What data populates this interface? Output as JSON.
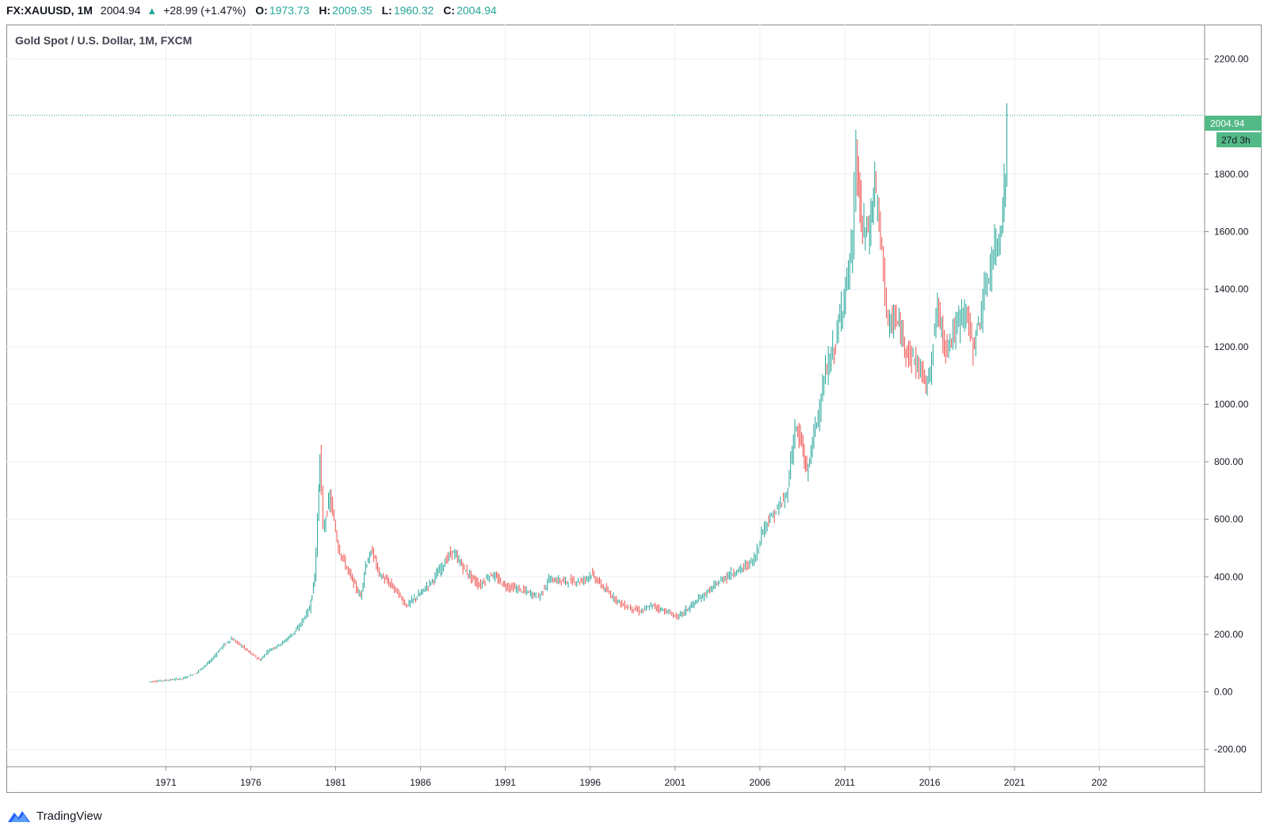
{
  "header": {
    "symbol": "FX:XAUUSD, 1M",
    "last": "2004.94",
    "arrow_icon": "triangle-up-icon",
    "change": "+28.99 (+1.47%)",
    "open_label": "O:",
    "open": "1973.73",
    "high_label": "H:",
    "high": "2009.35",
    "low_label": "L:",
    "low": "1960.32",
    "close_label": "C:",
    "close": "2004.94"
  },
  "legend": {
    "title": "Gold Spot / U.S. Dollar, 1M, FXCM"
  },
  "price_badge": {
    "value": "2004.94",
    "countdown": "27d 3h",
    "color": "#53b987"
  },
  "colors": {
    "up": "#26a69a",
    "down": "#ef5350",
    "grid": "#e9eff3",
    "axis_text": "#131722"
  },
  "footer": {
    "brand": "TradingView",
    "logo_icon": "tradingview-cloud-icon"
  },
  "chart_data": {
    "type": "line",
    "x_ticks": [
      "1971",
      "1976",
      "1981",
      "1986",
      "1991",
      "1996",
      "2001",
      "2006",
      "2011",
      "2016",
      "2021",
      "202"
    ],
    "y_ticks": [
      "2200.00",
      "1800.00",
      "1600.00",
      "1400.00",
      "1200.00",
      "1000.00",
      "800.00",
      "600.00",
      "400.00",
      "200.00",
      "0.00",
      "-200.00"
    ],
    "y_range": [
      -260,
      2320
    ],
    "x_range": [
      1961.6,
      2032.2
    ],
    "grid": true,
    "series": [
      {
        "points": [
          [
            1970.0,
            35
          ],
          [
            1971.0,
            40
          ],
          [
            1972.0,
            46
          ],
          [
            1972.8,
            65
          ],
          [
            1973.3,
            90
          ],
          [
            1973.7,
            110
          ],
          [
            1974.3,
            155
          ],
          [
            1974.9,
            185
          ],
          [
            1975.5,
            160
          ],
          [
            1976.0,
            135
          ],
          [
            1976.6,
            110
          ],
          [
            1977.0,
            140
          ],
          [
            1978.0,
            175
          ],
          [
            1978.8,
            220
          ],
          [
            1979.5,
            290
          ],
          [
            1979.8,
            400
          ],
          [
            1980.05,
            700
          ],
          [
            1980.1,
            840
          ],
          [
            1980.3,
            560
          ],
          [
            1980.7,
            680
          ],
          [
            1981.2,
            500
          ],
          [
            1981.7,
            430
          ],
          [
            1982.5,
            330
          ],
          [
            1982.8,
            440
          ],
          [
            1983.2,
            490
          ],
          [
            1983.6,
            410
          ],
          [
            1984.5,
            360
          ],
          [
            1985.2,
            300
          ],
          [
            1986.0,
            340
          ],
          [
            1986.9,
            400
          ],
          [
            1987.9,
            490
          ],
          [
            1988.7,
            420
          ],
          [
            1989.5,
            370
          ],
          [
            1990.2,
            410
          ],
          [
            1991.0,
            370
          ],
          [
            1992.2,
            350
          ],
          [
            1993.0,
            330
          ],
          [
            1993.6,
            390
          ],
          [
            1994.5,
            385
          ],
          [
            1995.5,
            385
          ],
          [
            1996.1,
            410
          ],
          [
            1997.0,
            350
          ],
          [
            1998.0,
            300
          ],
          [
            1999.0,
            280
          ],
          [
            1999.7,
            300
          ],
          [
            2000.5,
            280
          ],
          [
            2001.2,
            260
          ],
          [
            2002.0,
            300
          ],
          [
            2003.0,
            350
          ],
          [
            2004.0,
            400
          ],
          [
            2005.0,
            430
          ],
          [
            2005.7,
            460
          ],
          [
            2006.3,
            580
          ],
          [
            2006.9,
            620
          ],
          [
            2007.6,
            680
          ],
          [
            2008.1,
            920
          ],
          [
            2008.5,
            860
          ],
          [
            2008.8,
            760
          ],
          [
            2009.3,
            920
          ],
          [
            2009.9,
            1100
          ],
          [
            2010.5,
            1220
          ],
          [
            2011.0,
            1380
          ],
          [
            2011.5,
            1550
          ],
          [
            2011.7,
            1880
          ],
          [
            2012.0,
            1620
          ],
          [
            2012.5,
            1600
          ],
          [
            2012.8,
            1780
          ],
          [
            2013.4,
            1420
          ],
          [
            2013.6,
            1260
          ],
          [
            2014.0,
            1300
          ],
          [
            2014.8,
            1180
          ],
          [
            2015.5,
            1120
          ],
          [
            2015.9,
            1060
          ],
          [
            2016.5,
            1340
          ],
          [
            2016.9,
            1200
          ],
          [
            2017.5,
            1250
          ],
          [
            2018.1,
            1340
          ],
          [
            2018.6,
            1200
          ],
          [
            2019.0,
            1300
          ],
          [
            2019.7,
            1500
          ],
          [
            2020.2,
            1600
          ],
          [
            2020.5,
            1780
          ],
          [
            2020.6,
            2004.94
          ]
        ]
      }
    ]
  }
}
